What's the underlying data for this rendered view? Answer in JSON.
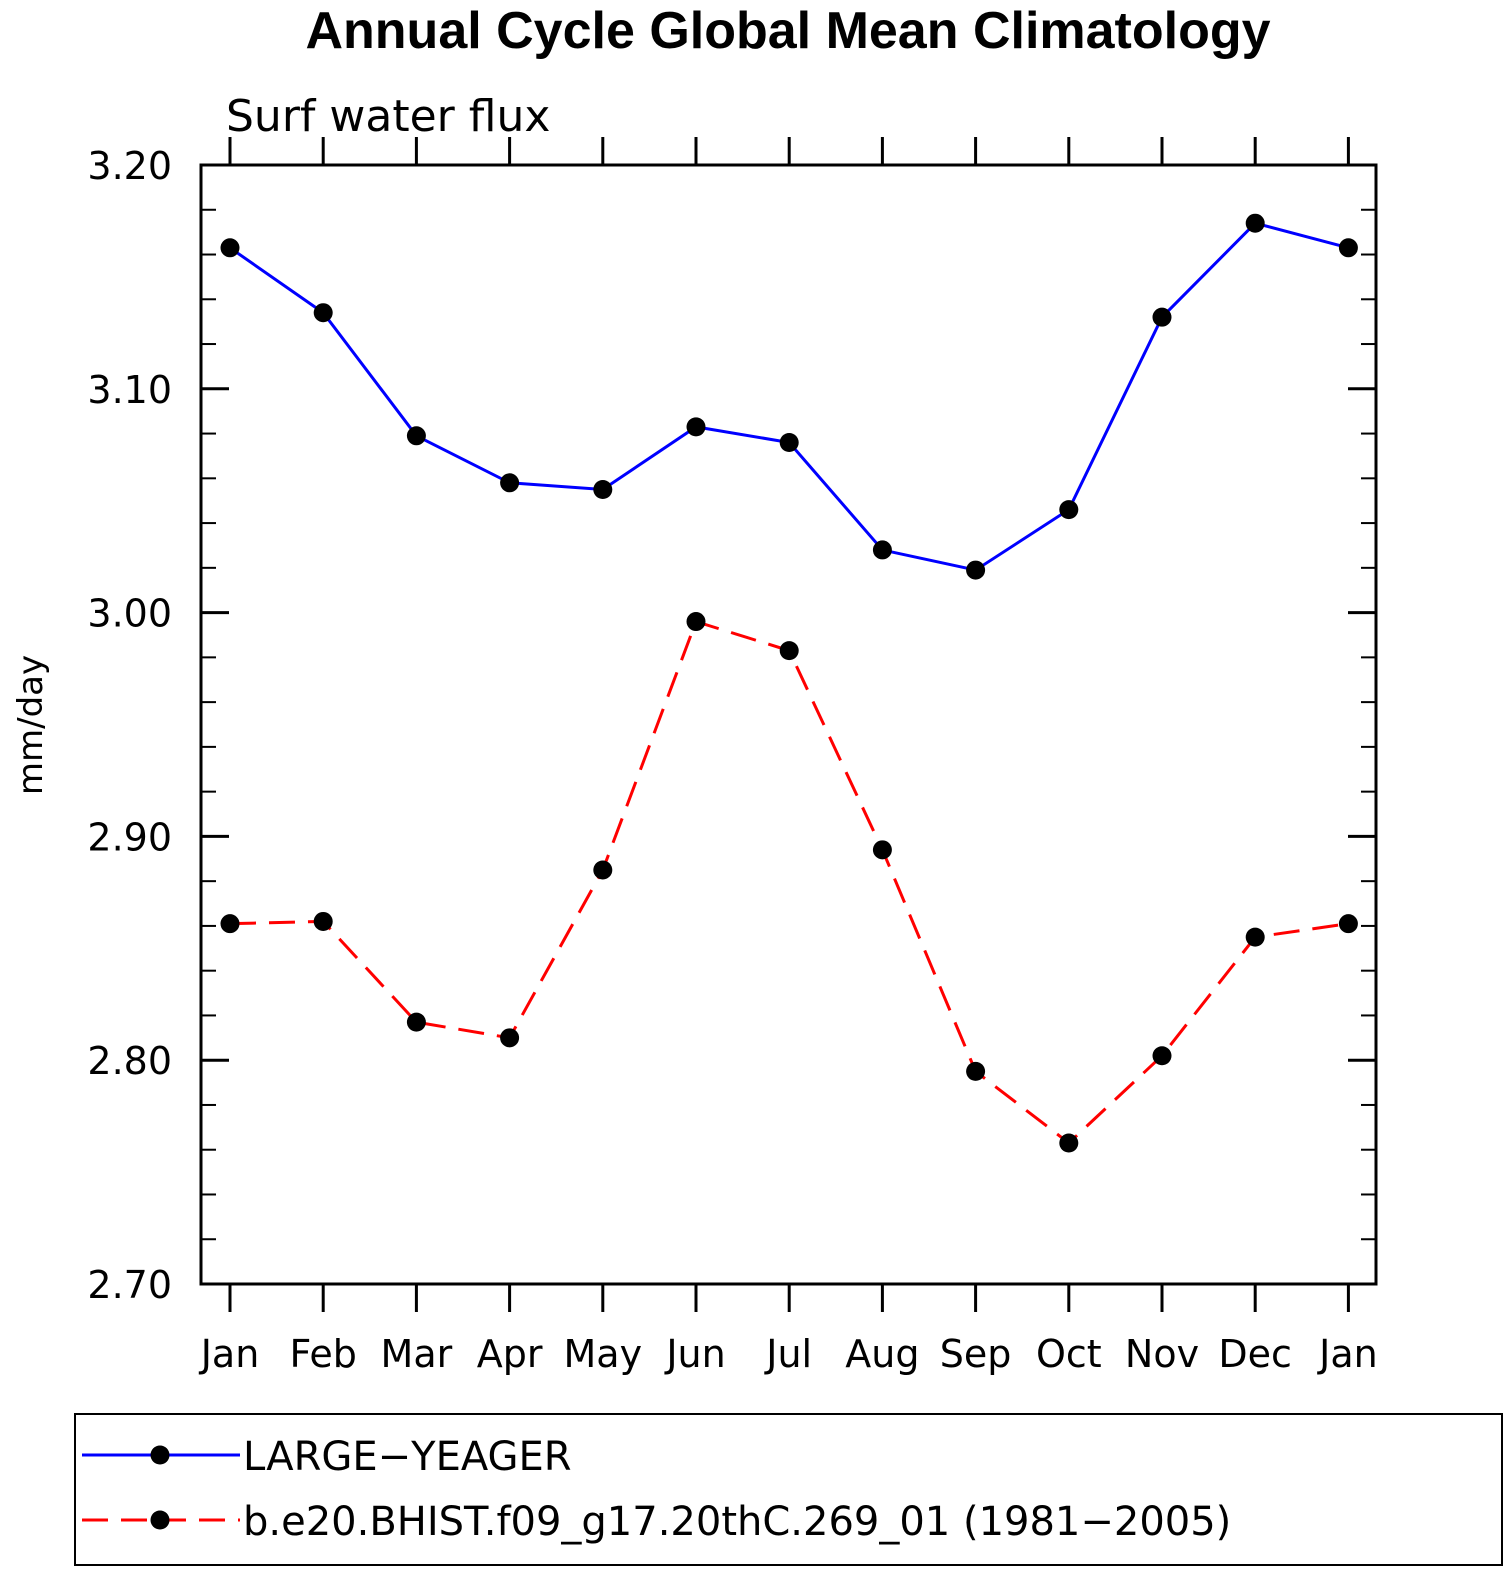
{
  "chart_data": {
    "type": "line",
    "title": "Annual Cycle Global Mean Climatology",
    "subtitle": "Surf water flux",
    "xlabel": "",
    "ylabel": "mm/day",
    "categories": [
      "Jan",
      "Feb",
      "Mar",
      "Apr",
      "May",
      "Jun",
      "Jul",
      "Aug",
      "Sep",
      "Oct",
      "Nov",
      "Dec",
      "Jan"
    ],
    "ylim": [
      2.7,
      3.2
    ],
    "yticks": [
      "2.70",
      "2.80",
      "2.90",
      "3.00",
      "3.10",
      "3.20"
    ],
    "grid": false,
    "legend_position": "bottom",
    "series": [
      {
        "name": "LARGE−YEAGER",
        "color": "#0000ff",
        "line_style": "solid",
        "marker": "filled-circle",
        "values": [
          3.163,
          3.134,
          3.079,
          3.058,
          3.055,
          3.083,
          3.076,
          3.028,
          3.019,
          3.046,
          3.132,
          3.174,
          3.163
        ]
      },
      {
        "name": "b.e20.BHIST.f09_g17.20thC.269_01 (1981−2005)",
        "color": "#ff0000",
        "line_style": "dashed",
        "marker": "filled-circle",
        "values": [
          2.861,
          2.862,
          2.817,
          2.81,
          2.885,
          2.996,
          2.983,
          2.894,
          2.795,
          2.763,
          2.802,
          2.855,
          2.861
        ]
      }
    ]
  }
}
